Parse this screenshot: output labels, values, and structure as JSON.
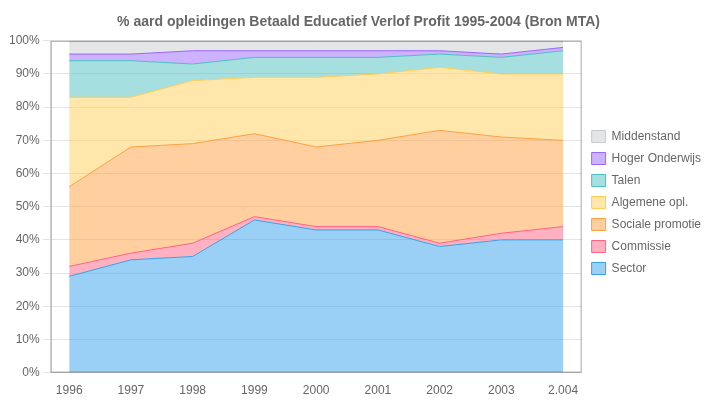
{
  "chart_data": {
    "type": "area",
    "title": "% aard opleidingen Betaald Educatief Verlof Profit 1995-2004 (Bron MTA)",
    "x": [
      1996,
      1997,
      1998,
      1999,
      2000,
      2001,
      2002,
      2003,
      2004
    ],
    "series": [
      {
        "name": "Sector",
        "values": [
          29,
          34,
          35,
          46,
          43,
          43,
          38,
          40,
          40
        ]
      },
      {
        "name": "Commissie",
        "values": [
          3,
          2,
          4,
          1,
          1,
          1,
          1,
          2,
          4
        ]
      },
      {
        "name": "Sociale promotie",
        "values": [
          24,
          32,
          30,
          25,
          24,
          26,
          34,
          29,
          26
        ]
      },
      {
        "name": "Algemene opl.",
        "values": [
          27,
          15,
          19,
          17,
          21,
          20,
          19,
          19,
          20
        ]
      },
      {
        "name": "Talen",
        "values": [
          11,
          11,
          5,
          6,
          6,
          5,
          4,
          5,
          7
        ]
      },
      {
        "name": "Hoger Onderwijs",
        "values": [
          2,
          2,
          4,
          2,
          2,
          2,
          1,
          1,
          1
        ]
      },
      {
        "name": "Middenstand",
        "values": [
          4,
          4,
          3,
          3,
          3,
          3,
          3,
          4,
          2
        ]
      }
    ],
    "xlim": [
      1995.7,
      2004.3
    ],
    "xticks": [
      1996,
      1997,
      1998,
      1999,
      2000,
      2001,
      2002,
      2003,
      {
        "value": 2004,
        "label": "2.004"
      }
    ],
    "ylim": [
      0,
      100
    ],
    "yticks": [
      {
        "value": 0,
        "label": "0%"
      },
      {
        "value": 10,
        "label": "10%"
      },
      {
        "value": 20,
        "label": "20%"
      },
      {
        "value": 30,
        "label": "30%"
      },
      {
        "value": 40,
        "label": "40%"
      },
      {
        "value": 50,
        "label": "50%"
      },
      {
        "value": 60,
        "label": "60%"
      },
      {
        "value": 70,
        "label": "70%"
      },
      {
        "value": 80,
        "label": "80%"
      },
      {
        "value": 90,
        "label": "90%"
      },
      {
        "value": 100,
        "label": "100%"
      }
    ],
    "grid": "y",
    "legend": "right",
    "stacked": true
  }
}
